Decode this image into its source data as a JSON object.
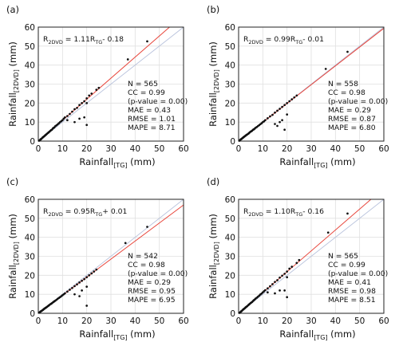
{
  "panels": [
    {
      "label": "(a)",
      "equation": {
        "lhs": "R",
        "lhs_sub": "2DVD",
        "mid": " = 1.11R",
        "mid_sub": "TG",
        "rhs": "- 0.18"
      },
      "stats": {
        "n": "N  =   565",
        "cc": "CC = 0.99",
        "pval": "(p-value = 0.00)",
        "mae": "MAE  =   0.43",
        "rmse": "RMSE = 1.01",
        "mape": "MAPE = 8.71"
      }
    },
    {
      "label": "(b)",
      "equation": {
        "lhs": "R",
        "lhs_sub": "2DVD",
        "mid": " = 0.99R",
        "mid_sub": "TG",
        "rhs": "- 0.01"
      },
      "stats": {
        "n": "N  =   558",
        "cc": "CC = 0.98",
        "pval": "(p-value = 0.00)",
        "mae": "MAE  =   0.29",
        "rmse": "RMSE = 0.87",
        "mape": "MAPE = 6.80"
      }
    },
    {
      "label": "(c)",
      "equation": {
        "lhs": "R",
        "lhs_sub": "2DVD",
        "mid": " = 0.95R",
        "mid_sub": "TG",
        "rhs": "+ 0.01"
      },
      "stats": {
        "n": "N  =   542",
        "cc": "CC = 0.98",
        "pval": "(p-value = 0.00)",
        "mae": "MAE  =   0.29",
        "rmse": "RMSE = 0.95",
        "mape": "MAPE = 6.95"
      }
    },
    {
      "label": "(d)",
      "equation": {
        "lhs": "R",
        "lhs_sub": "2DVD",
        "mid": " = 1.10R",
        "mid_sub": "TG",
        "rhs": "- 0.16"
      },
      "stats": {
        "n": "N  =   565",
        "cc": "CC = 0.99",
        "pval": "(p-value = 0.00)",
        "mae": "MAE  =   0.41",
        "rmse": "RMSE = 0.98",
        "mape": "MAPE = 8.51"
      }
    }
  ],
  "axes": {
    "xlabel": "Rainfall",
    "xlabel_sub": "[TG]",
    "xlabel_unit": " (mm)",
    "ylabel": "Rainfall",
    "ylabel_sub": "[2DVD]",
    "ylabel_unit": " (mm)",
    "ticks": [
      "0",
      "10",
      "20",
      "30",
      "40",
      "50",
      "60"
    ]
  },
  "colors": {
    "fit_line": "#e8463c",
    "identity_line": "#b8c2dc",
    "points": "#111111",
    "grid": "#e0e0e0"
  },
  "chart_data": [
    {
      "type": "scatter",
      "title": "(a)",
      "xlabel": "Rainfall[TG] (mm)",
      "ylabel": "Rainfall[2DVD] (mm)",
      "xlim": [
        0,
        60
      ],
      "ylim": [
        0,
        60
      ],
      "grid": true,
      "fit": {
        "slope": 1.11,
        "intercept": -0.18
      },
      "points": [
        [
          0.3,
          0.2
        ],
        [
          0.5,
          0.4
        ],
        [
          0.8,
          0.7
        ],
        [
          1,
          1
        ],
        [
          1.2,
          1.1
        ],
        [
          1.5,
          1.5
        ],
        [
          1.8,
          1.9
        ],
        [
          2,
          2.1
        ],
        [
          2.3,
          2.4
        ],
        [
          2.5,
          2.6
        ],
        [
          2.8,
          3
        ],
        [
          3,
          3.2
        ],
        [
          3.3,
          3.5
        ],
        [
          3.6,
          3.9
        ],
        [
          4,
          4.3
        ],
        [
          4.3,
          4.6
        ],
        [
          4.6,
          5
        ],
        [
          5,
          5.4
        ],
        [
          5.3,
          5.8
        ],
        [
          5.6,
          6
        ],
        [
          6,
          6.6
        ],
        [
          6.3,
          7
        ],
        [
          6.6,
          7.2
        ],
        [
          7,
          7.8
        ],
        [
          7.5,
          8.3
        ],
        [
          8,
          8.8
        ],
        [
          8.5,
          9.4
        ],
        [
          9,
          10
        ],
        [
          9.5,
          10.5
        ],
        [
          10,
          11
        ],
        [
          10.5,
          11.8
        ],
        [
          11,
          12.5
        ],
        [
          12,
          13.2
        ],
        [
          13,
          14.3
        ],
        [
          14,
          15.5
        ],
        [
          15,
          16.8
        ],
        [
          16,
          17.5
        ],
        [
          17,
          19
        ],
        [
          18,
          20
        ],
        [
          19,
          21
        ],
        [
          20,
          22.5
        ],
        [
          21,
          24
        ],
        [
          22,
          25
        ],
        [
          24,
          27
        ],
        [
          25,
          28
        ],
        [
          12,
          11
        ],
        [
          15,
          10
        ],
        [
          17,
          11.8
        ],
        [
          19,
          12.5
        ],
        [
          20,
          8.5
        ],
        [
          20,
          20
        ],
        [
          37,
          43
        ],
        [
          45,
          52.5
        ]
      ]
    },
    {
      "type": "scatter",
      "title": "(b)",
      "xlabel": "Rainfall[TG] (mm)",
      "ylabel": "Rainfall[2DVD] (mm)",
      "xlim": [
        0,
        60
      ],
      "ylim": [
        0,
        60
      ],
      "grid": true,
      "fit": {
        "slope": 0.99,
        "intercept": -0.01
      },
      "points": [
        [
          0.3,
          0.2
        ],
        [
          0.5,
          0.5
        ],
        [
          0.8,
          0.8
        ],
        [
          1,
          1
        ],
        [
          1.3,
          1.2
        ],
        [
          1.5,
          1.5
        ],
        [
          1.8,
          1.8
        ],
        [
          2,
          2
        ],
        [
          2.3,
          2.3
        ],
        [
          2.5,
          2.5
        ],
        [
          2.8,
          2.8
        ],
        [
          3,
          3
        ],
        [
          3.3,
          3.3
        ],
        [
          3.6,
          3.5
        ],
        [
          4,
          3.9
        ],
        [
          4.3,
          4.2
        ],
        [
          4.6,
          4.6
        ],
        [
          5,
          5
        ],
        [
          5.3,
          5.2
        ],
        [
          5.6,
          5.5
        ],
        [
          6,
          6
        ],
        [
          6.3,
          6.2
        ],
        [
          6.6,
          6.5
        ],
        [
          7,
          7
        ],
        [
          7.5,
          7.4
        ],
        [
          8,
          7.9
        ],
        [
          8.5,
          8.4
        ],
        [
          9,
          8.9
        ],
        [
          9.5,
          9.4
        ],
        [
          10,
          10
        ],
        [
          10.5,
          10.4
        ],
        [
          11,
          11
        ],
        [
          12,
          12
        ],
        [
          13,
          13
        ],
        [
          14,
          13.8
        ],
        [
          15,
          15
        ],
        [
          16,
          16
        ],
        [
          17,
          17
        ],
        [
          18,
          18
        ],
        [
          19,
          19
        ],
        [
          20,
          20
        ],
        [
          21,
          21
        ],
        [
          22,
          22
        ],
        [
          23,
          23
        ],
        [
          24,
          24
        ],
        [
          15,
          9
        ],
        [
          16,
          8
        ],
        [
          17,
          10
        ],
        [
          18,
          11
        ],
        [
          19,
          6
        ],
        [
          20,
          14
        ],
        [
          36,
          38
        ],
        [
          45,
          47
        ]
      ]
    },
    {
      "type": "scatter",
      "title": "(c)",
      "xlabel": "Rainfall[TG] (mm)",
      "ylabel": "Rainfall[2DVD] (mm)",
      "xlim": [
        0,
        60
      ],
      "ylim": [
        0,
        60
      ],
      "grid": true,
      "fit": {
        "slope": 0.95,
        "intercept": 0.01
      },
      "points": [
        [
          0.3,
          0.3
        ],
        [
          0.5,
          0.5
        ],
        [
          0.8,
          0.8
        ],
        [
          1,
          1
        ],
        [
          1.3,
          1.2
        ],
        [
          1.5,
          1.4
        ],
        [
          1.8,
          1.7
        ],
        [
          2,
          1.9
        ],
        [
          2.3,
          2.2
        ],
        [
          2.5,
          2.4
        ],
        [
          2.8,
          2.7
        ],
        [
          3,
          2.9
        ],
        [
          3.3,
          3.1
        ],
        [
          3.6,
          3.4
        ],
        [
          4,
          3.8
        ],
        [
          4.3,
          4.1
        ],
        [
          4.6,
          4.4
        ],
        [
          5,
          4.8
        ],
        [
          5.3,
          5
        ],
        [
          5.6,
          5.3
        ],
        [
          6,
          5.7
        ],
        [
          6.3,
          6
        ],
        [
          6.6,
          6.3
        ],
        [
          7,
          6.6
        ],
        [
          7.5,
          7.1
        ],
        [
          8,
          7.6
        ],
        [
          8.5,
          8.1
        ],
        [
          9,
          8.5
        ],
        [
          9.5,
          9
        ],
        [
          10,
          9.5
        ],
        [
          10.5,
          10
        ],
        [
          11,
          10.5
        ],
        [
          12,
          11.4
        ],
        [
          13,
          12.4
        ],
        [
          14,
          13.3
        ],
        [
          15,
          14.3
        ],
        [
          16,
          15.2
        ],
        [
          17,
          16.2
        ],
        [
          18,
          17.1
        ],
        [
          19,
          18
        ],
        [
          20,
          19
        ],
        [
          21,
          20
        ],
        [
          22,
          21
        ],
        [
          23,
          22
        ],
        [
          24,
          23
        ],
        [
          15,
          10
        ],
        [
          17,
          9
        ],
        [
          18,
          12
        ],
        [
          20,
          4
        ],
        [
          20,
          14
        ],
        [
          36,
          37
        ],
        [
          45,
          45.5
        ]
      ]
    },
    {
      "type": "scatter",
      "title": "(d)",
      "xlabel": "Rainfall[TG] (mm)",
      "ylabel": "Rainfall[2DVD] (mm)",
      "xlim": [
        0,
        60
      ],
      "ylim": [
        0,
        60
      ],
      "grid": true,
      "fit": {
        "slope": 1.1,
        "intercept": -0.16
      },
      "points": [
        [
          0.3,
          0.2
        ],
        [
          0.5,
          0.4
        ],
        [
          0.8,
          0.7
        ],
        [
          1,
          1
        ],
        [
          1.2,
          1.1
        ],
        [
          1.5,
          1.5
        ],
        [
          1.8,
          1.9
        ],
        [
          2,
          2.1
        ],
        [
          2.3,
          2.4
        ],
        [
          2.5,
          2.6
        ],
        [
          2.8,
          3
        ],
        [
          3,
          3.2
        ],
        [
          3.3,
          3.5
        ],
        [
          3.6,
          3.8
        ],
        [
          4,
          4.3
        ],
        [
          4.3,
          4.6
        ],
        [
          4.6,
          5
        ],
        [
          5,
          5.4
        ],
        [
          5.3,
          5.7
        ],
        [
          5.6,
          6
        ],
        [
          6,
          6.5
        ],
        [
          6.3,
          6.9
        ],
        [
          6.6,
          7.2
        ],
        [
          7,
          7.7
        ],
        [
          7.5,
          8.2
        ],
        [
          8,
          8.7
        ],
        [
          8.5,
          9.3
        ],
        [
          9,
          9.9
        ],
        [
          9.5,
          10.4
        ],
        [
          10,
          11
        ],
        [
          10.5,
          11.6
        ],
        [
          11,
          12.2
        ],
        [
          12,
          13.1
        ],
        [
          13,
          14.2
        ],
        [
          14,
          15.3
        ],
        [
          15,
          16.5
        ],
        [
          16,
          17.4
        ],
        [
          17,
          18.8
        ],
        [
          18,
          19.8
        ],
        [
          19,
          20.8
        ],
        [
          20,
          22
        ],
        [
          21,
          23.5
        ],
        [
          22,
          24.5
        ],
        [
          24,
          26.5
        ],
        [
          25,
          28
        ],
        [
          12,
          11
        ],
        [
          15,
          10.5
        ],
        [
          17,
          12
        ],
        [
          19,
          12
        ],
        [
          20,
          8.5
        ],
        [
          20,
          19
        ],
        [
          37,
          42.5
        ],
        [
          45,
          52.5
        ]
      ]
    }
  ]
}
